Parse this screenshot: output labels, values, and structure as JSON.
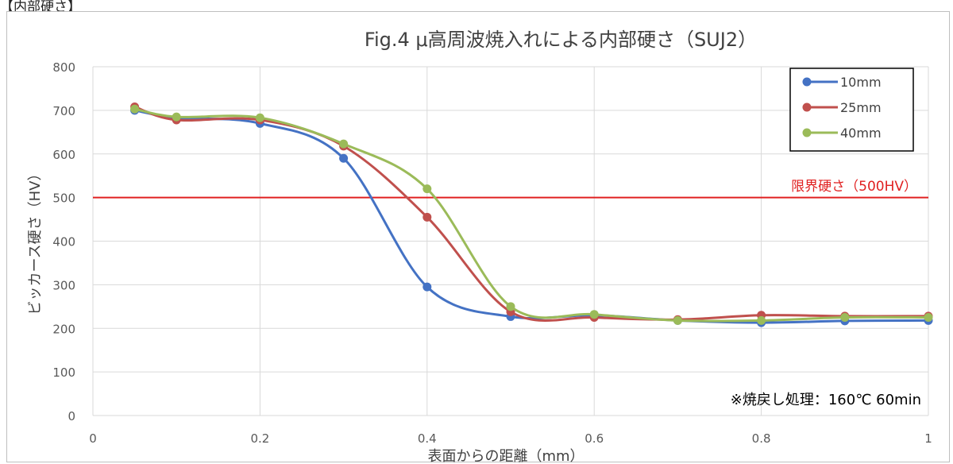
{
  "page": {
    "section_header": "【内部硬さ】"
  },
  "chart_data": {
    "type": "line",
    "title": "Fig.4 μ高周波焼入れによる内部硬さ（SUJ2）",
    "xlabel": "表面からの距離（mm）",
    "ylabel": "ビッカース硬さ（HV）",
    "xlim": [
      0,
      1
    ],
    "ylim": [
      0,
      800
    ],
    "x_ticks": [
      0,
      0.2,
      0.4,
      0.6,
      0.8,
      1
    ],
    "x_tick_labels": [
      "0",
      "0.2",
      "0.4",
      "0.6",
      "0.8",
      "1"
    ],
    "y_ticks": [
      0,
      100,
      200,
      300,
      400,
      500,
      600,
      700,
      800
    ],
    "y_tick_labels": [
      "0",
      "100",
      "200",
      "300",
      "400",
      "500",
      "600",
      "700",
      "800"
    ],
    "grid": true,
    "smooth": true,
    "legend_position": "top-right",
    "series": [
      {
        "name": "10mm",
        "color": "#4472c4",
        "x": [
          0.05,
          0.1,
          0.2,
          0.3,
          0.4,
          0.5,
          0.6,
          0.7,
          0.8,
          0.9,
          1.0
        ],
        "values": [
          700,
          683,
          670,
          590,
          295,
          227,
          230,
          218,
          213,
          217,
          218
        ]
      },
      {
        "name": "25mm",
        "color": "#c0504d",
        "x": [
          0.05,
          0.1,
          0.2,
          0.3,
          0.4,
          0.5,
          0.6,
          0.7,
          0.8,
          0.9,
          1.0
        ],
        "values": [
          708,
          678,
          678,
          618,
          455,
          238,
          225,
          220,
          230,
          228,
          228
        ]
      },
      {
        "name": "40mm",
        "color": "#9bbb59",
        "x": [
          0.05,
          0.1,
          0.2,
          0.3,
          0.4,
          0.5,
          0.6,
          0.7,
          0.8,
          0.9,
          1.0
        ],
        "values": [
          703,
          685,
          683,
          623,
          520,
          250,
          232,
          218,
          218,
          225,
          225
        ]
      }
    ],
    "reference_line": {
      "value": 500,
      "label": "限界硬さ（500HV）",
      "color": "#e02020"
    },
    "annotation": "※焼戻し処理：160℃ 60min"
  }
}
